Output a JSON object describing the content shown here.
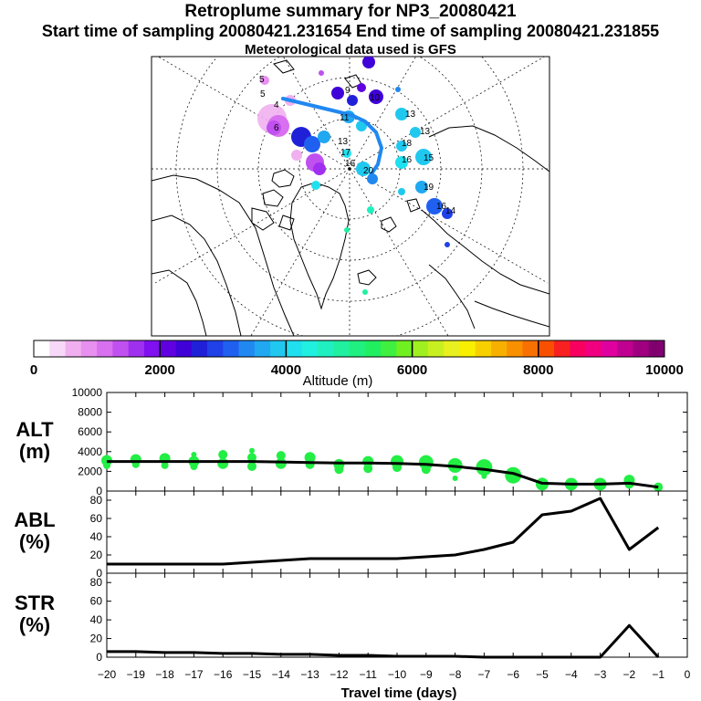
{
  "header": {
    "title": "Retroplume summary for NP3_20080421",
    "sampling": "Start time of sampling 20080421.231654     End time of sampling 20080421.231855",
    "met": "Meteorological data used is GFS"
  },
  "map": {
    "labels": [
      "5",
      "5",
      "4",
      "6",
      "9",
      "10",
      "11",
      "13",
      "13",
      "15",
      "16",
      "18",
      "16",
      "19",
      "20",
      "17",
      "13",
      "14",
      "16"
    ]
  },
  "colorbar": {
    "title": "Altitude (m)",
    "tick_labels": [
      "0",
      "2000",
      "4000",
      "6000",
      "8000",
      "10000"
    ],
    "colors": [
      "#ffffff",
      "#f8d8f8",
      "#f0b0f0",
      "#e890f0",
      "#d870f0",
      "#c050f0",
      "#a030f0",
      "#8010f0",
      "#6000e0",
      "#4000d8",
      "#2020d8",
      "#2040e8",
      "#2060f0",
      "#2088f0",
      "#20a8f0",
      "#20c8f0",
      "#20e0f0",
      "#20f0e0",
      "#20f0c0",
      "#20f0a0",
      "#20f080",
      "#20f060",
      "#40f040",
      "#70f020",
      "#a0f020",
      "#c8f020",
      "#e8f020",
      "#f8f000",
      "#f8d000",
      "#f8b000",
      "#f89000",
      "#f87000",
      "#f85000",
      "#f82020",
      "#f80060",
      "#f00080",
      "#e000a0",
      "#c00090",
      "#a00080",
      "#800070"
    ]
  },
  "chart_data": [
    {
      "type": "line",
      "name": "ALT",
      "ylabel": "ALT\n(m)",
      "xlim": [
        -20,
        0
      ],
      "ylim": [
        0,
        10000
      ],
      "yticks": [
        0,
        2000,
        4000,
        6000,
        8000,
        10000
      ],
      "x": [
        -20,
        -19,
        -18,
        -17,
        -16,
        -15,
        -14,
        -13,
        -12,
        -11,
        -10,
        -9,
        -8,
        -7,
        -6,
        -5,
        -4,
        -3,
        -2,
        -1
      ],
      "values": [
        3000,
        3000,
        3000,
        3000,
        3000,
        3000,
        2950,
        2900,
        2850,
        2850,
        2800,
        2700,
        2500,
        2200,
        1800,
        800,
        700,
        700,
        800,
        400
      ],
      "scatter": [
        {
          "x": -20,
          "y": 3100,
          "r": 6
        },
        {
          "x": -20,
          "y": 2600,
          "r": 4
        },
        {
          "x": -19,
          "y": 3200,
          "r": 6
        },
        {
          "x": -19,
          "y": 2700,
          "r": 4
        },
        {
          "x": -18,
          "y": 3300,
          "r": 6
        },
        {
          "x": -18,
          "y": 2600,
          "r": 4
        },
        {
          "x": -17,
          "y": 3700,
          "r": 3
        },
        {
          "x": -17,
          "y": 3000,
          "r": 6
        },
        {
          "x": -17,
          "y": 2500,
          "r": 4
        },
        {
          "x": -16,
          "y": 3700,
          "r": 5
        },
        {
          "x": -16,
          "y": 2800,
          "r": 6
        },
        {
          "x": -15,
          "y": 4100,
          "r": 3
        },
        {
          "x": -15,
          "y": 3400,
          "r": 5
        },
        {
          "x": -15,
          "y": 2500,
          "r": 5
        },
        {
          "x": -14,
          "y": 3600,
          "r": 5
        },
        {
          "x": -14,
          "y": 2800,
          "r": 6
        },
        {
          "x": -13,
          "y": 3400,
          "r": 6
        },
        {
          "x": -13,
          "y": 2700,
          "r": 5
        },
        {
          "x": -12,
          "y": 2700,
          "r": 6
        },
        {
          "x": -12,
          "y": 2200,
          "r": 5
        },
        {
          "x": -11,
          "y": 3000,
          "r": 6
        },
        {
          "x": -11,
          "y": 2300,
          "r": 5
        },
        {
          "x": -10,
          "y": 3000,
          "r": 7
        },
        {
          "x": -10,
          "y": 2400,
          "r": 5
        },
        {
          "x": -9,
          "y": 2900,
          "r": 8
        },
        {
          "x": -9,
          "y": 2200,
          "r": 5
        },
        {
          "x": -8,
          "y": 2600,
          "r": 8
        },
        {
          "x": -8,
          "y": 1300,
          "r": 3
        },
        {
          "x": -7,
          "y": 2400,
          "r": 9
        },
        {
          "x": -7,
          "y": 1500,
          "r": 3
        },
        {
          "x": -6,
          "y": 1600,
          "r": 9
        },
        {
          "x": -5,
          "y": 700,
          "r": 7
        },
        {
          "x": -5,
          "y": 900,
          "r": 5
        },
        {
          "x": -4,
          "y": 700,
          "r": 7
        },
        {
          "x": -3,
          "y": 700,
          "r": 7
        },
        {
          "x": -2,
          "y": 1100,
          "r": 6
        },
        {
          "x": -2,
          "y": 700,
          "r": 5
        },
        {
          "x": -1,
          "y": 400,
          "r": 5
        }
      ]
    },
    {
      "type": "line",
      "name": "ABL",
      "ylabel": "ABL\n(%)",
      "xlim": [
        -20,
        0
      ],
      "ylim": [
        0,
        90
      ],
      "yticks": [
        0,
        20,
        40,
        60,
        80
      ],
      "x": [
        -20,
        -19,
        -18,
        -17,
        -16,
        -15,
        -14,
        -13,
        -12,
        -11,
        -10,
        -9,
        -8,
        -7,
        -6,
        -5,
        -4,
        -3,
        -2,
        -1
      ],
      "values": [
        10,
        10,
        10,
        10,
        10,
        12,
        14,
        16,
        16,
        16,
        16,
        18,
        20,
        26,
        34,
        64,
        68,
        82,
        26,
        50
      ]
    },
    {
      "type": "line",
      "name": "STR",
      "ylabel": "STR\n(%)",
      "xlim": [
        -20,
        0
      ],
      "ylim": [
        0,
        90
      ],
      "yticks": [
        0,
        20,
        40,
        60,
        80
      ],
      "x": [
        -20,
        -19,
        -18,
        -17,
        -16,
        -15,
        -14,
        -13,
        -12,
        -11,
        -10,
        -9,
        -8,
        -7,
        -6,
        -5,
        -4,
        -3,
        -2,
        -1
      ],
      "values": [
        6,
        6,
        5,
        5,
        4,
        4,
        3,
        3,
        2,
        2,
        1,
        1,
        1,
        0,
        0,
        0,
        0,
        0,
        34,
        0
      ],
      "xlabel": "Travel time (days)",
      "xticks": [
        -20,
        -19,
        -18,
        -17,
        -16,
        -15,
        -14,
        -13,
        -12,
        -11,
        -10,
        -9,
        -8,
        -7,
        -6,
        -5,
        -4,
        -3,
        -2,
        -1,
        0
      ]
    }
  ]
}
